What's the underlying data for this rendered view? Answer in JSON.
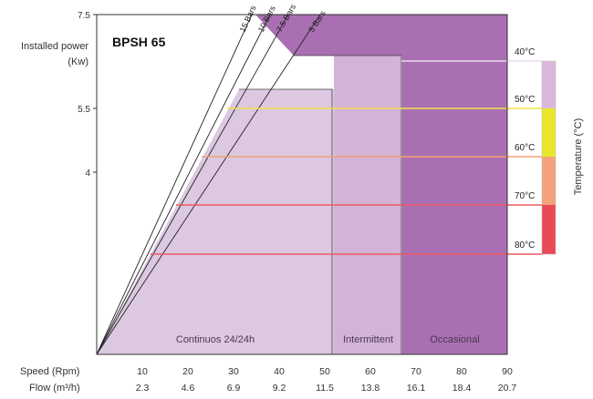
{
  "chart_data": {
    "type": "area",
    "title": "BPSH 65",
    "ylabel_line1": "Installed power",
    "ylabel_line2": "(Kw)",
    "y_ticks": [
      {
        "label": "7.5",
        "value": 7.5
      },
      {
        "label": "5.5",
        "value": 5.5
      },
      {
        "label": "4",
        "value": 4
      }
    ],
    "speed_label": "Speed (Rpm)",
    "flow_label": "Flow (m³/h)",
    "x_ticks": [
      {
        "speed": "10",
        "flow": "2.3",
        "value": 10
      },
      {
        "speed": "20",
        "flow": "4.6",
        "value": 20
      },
      {
        "speed": "30",
        "flow": "6.9",
        "value": 30
      },
      {
        "speed": "40",
        "flow": "9.2",
        "value": 40
      },
      {
        "speed": "50",
        "flow": "11.5",
        "value": 50
      },
      {
        "speed": "60",
        "flow": "13.8",
        "value": 60
      },
      {
        "speed": "70",
        "flow": "16.1",
        "value": 70
      },
      {
        "speed": "80",
        "flow": "18.4",
        "value": 80
      },
      {
        "speed": "90",
        "flow": "20.7",
        "value": 90
      }
    ],
    "regions": [
      {
        "name": "Continuos 24/24h",
        "x_from": 0,
        "x_to": 52,
        "color": "#dcc8e1"
      },
      {
        "name": "Intermittent",
        "x_from": 52,
        "x_to": 67,
        "color": "#d3b3d8"
      },
      {
        "name": "Occasional",
        "x_from": 67,
        "x_to": 90,
        "color": "#a96fb2"
      }
    ],
    "pressure_lines": [
      {
        "label": "15 Bars",
        "x_at_top": 34
      },
      {
        "label": "10 Bars",
        "x_at_top": 38
      },
      {
        "label": "7.5 Bars",
        "x_at_top": 42
      },
      {
        "label": "5 Bars",
        "x_at_top": 49
      }
    ],
    "temperature_label": "Temperature (°C)",
    "temperatures": [
      {
        "label": "40°C",
        "color": "#dab8dc",
        "line_color": "#eadcee"
      },
      {
        "label": "50°C",
        "color": "#e9e62c",
        "line_color": "#f2e04a"
      },
      {
        "label": "60°C",
        "color": "#f4a27c",
        "line_color": "#f0a070"
      },
      {
        "label": "70°C",
        "color": "#ea4a55",
        "line_color": "#ec5a60"
      },
      {
        "label": "80°C",
        "color": "#ea4a55",
        "line_color": "#ec5a60"
      }
    ]
  }
}
